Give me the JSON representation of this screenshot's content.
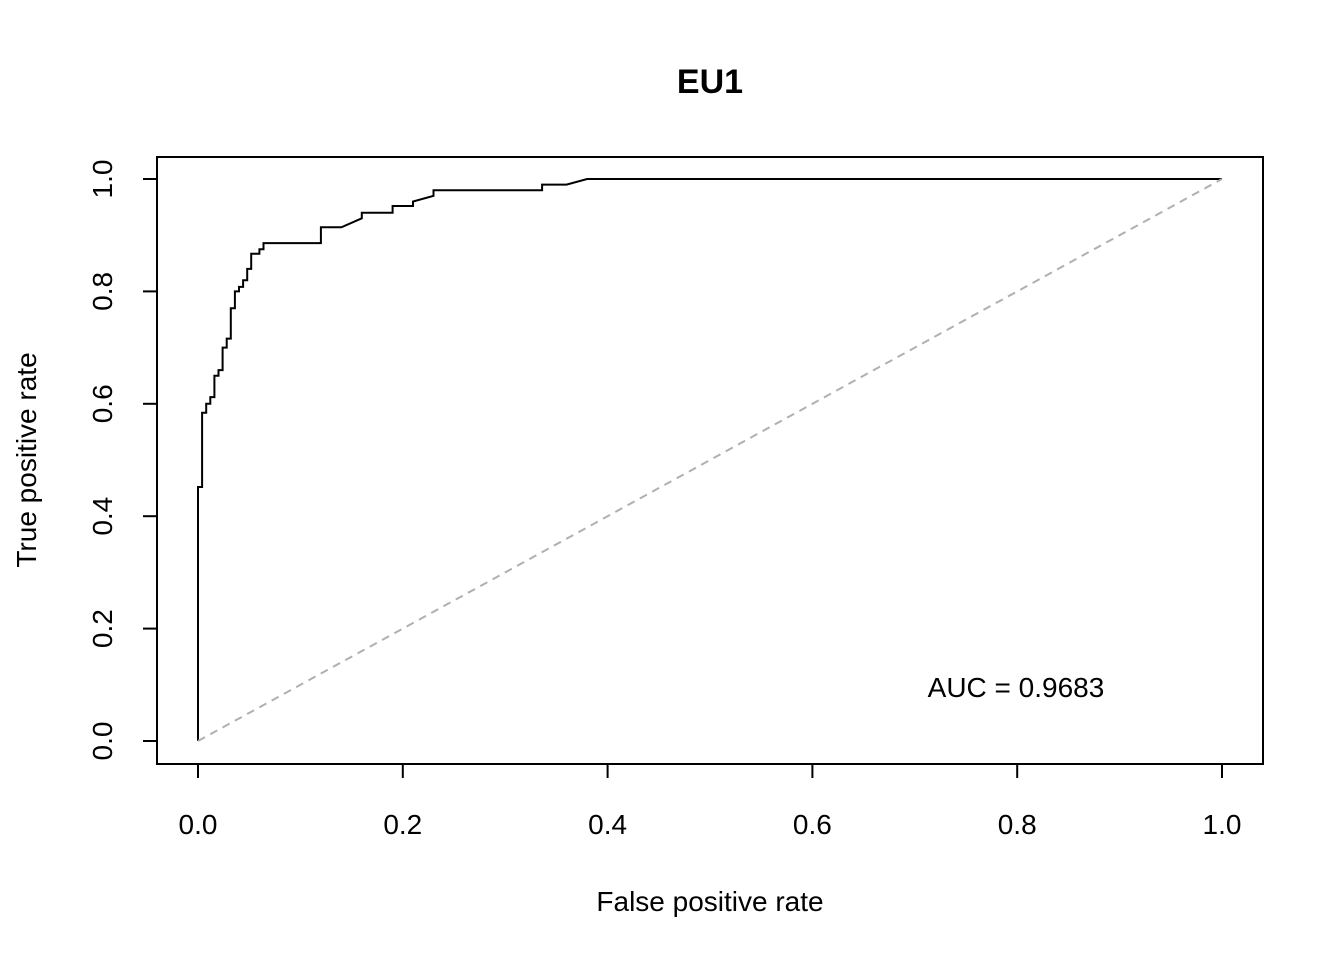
{
  "chart_data": {
    "type": "line",
    "title": "EU1",
    "xlabel": "False positive rate",
    "ylabel": "True positive rate",
    "xlim": [
      0,
      1
    ],
    "ylim": [
      0,
      1
    ],
    "x_ticks": [
      0.0,
      0.2,
      0.4,
      0.6,
      0.8,
      1.0
    ],
    "x_tick_labels": [
      "0.0",
      "0.2",
      "0.4",
      "0.6",
      "0.8",
      "1.0"
    ],
    "y_ticks": [
      0.0,
      0.2,
      0.4,
      0.6,
      0.8,
      1.0
    ],
    "y_tick_labels": [
      "0.0",
      "0.2",
      "0.4",
      "0.6",
      "0.8",
      "1.0"
    ],
    "grid": false,
    "legend": "none",
    "annotation": "AUC = 0.9683",
    "series": [
      {
        "color": "#000000",
        "style": "solid",
        "x": [
          0.0,
          0.0,
          0.004,
          0.004,
          0.008,
          0.008,
          0.012,
          0.012,
          0.016,
          0.016,
          0.02,
          0.02,
          0.024,
          0.024,
          0.028,
          0.028,
          0.032,
          0.032,
          0.036,
          0.036,
          0.04,
          0.04,
          0.044,
          0.044,
          0.048,
          0.048,
          0.052,
          0.052,
          0.06,
          0.06,
          0.064,
          0.064,
          0.12,
          0.12,
          0.14,
          0.16,
          0.16,
          0.19,
          0.19,
          0.21,
          0.21,
          0.23,
          0.23,
          0.336,
          0.336,
          0.36,
          0.38,
          1.0
        ],
        "y": [
          0.0,
          0.452,
          0.452,
          0.584,
          0.584,
          0.6,
          0.6,
          0.612,
          0.612,
          0.65,
          0.65,
          0.66,
          0.66,
          0.7,
          0.7,
          0.716,
          0.716,
          0.77,
          0.77,
          0.8,
          0.8,
          0.808,
          0.808,
          0.82,
          0.82,
          0.84,
          0.84,
          0.867,
          0.867,
          0.875,
          0.875,
          0.886,
          0.886,
          0.914,
          0.914,
          0.93,
          0.94,
          0.94,
          0.952,
          0.952,
          0.96,
          0.97,
          0.98,
          0.98,
          0.99,
          0.99,
          1.0,
          1.0
        ]
      },
      {
        "color": "#b0b0b0",
        "style": "dashed",
        "x": [
          0.0,
          1.0
        ],
        "y": [
          0.0,
          1.0
        ]
      }
    ]
  }
}
